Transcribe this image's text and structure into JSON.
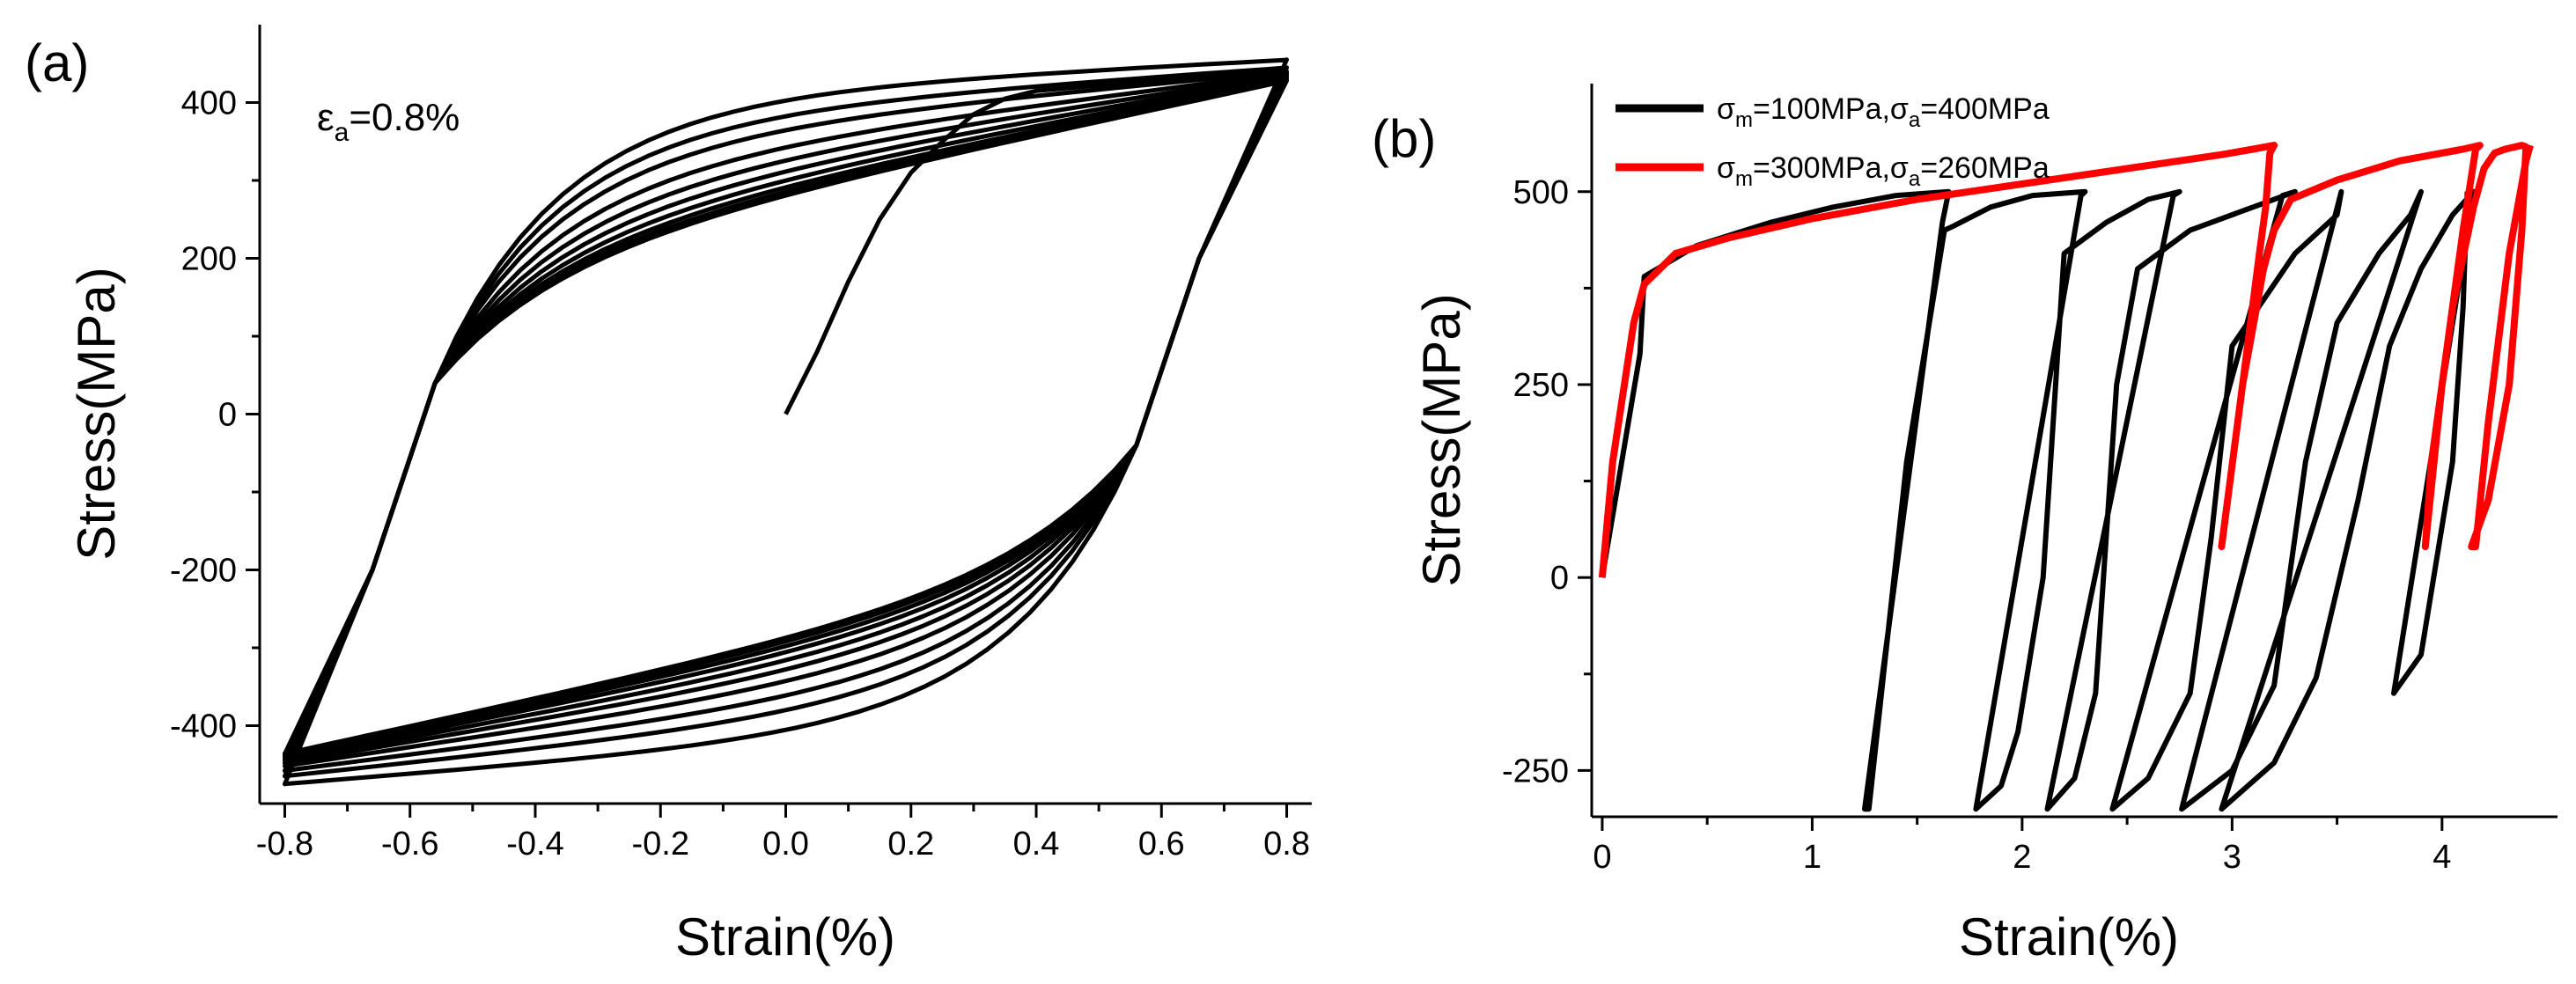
{
  "chart_data": [
    {
      "panel": "(a)",
      "type": "line",
      "xlabel": "Strain(%)",
      "ylabel": "Stress(MPa)",
      "xlim": [
        -0.84,
        0.84
      ],
      "ylim": [
        -500,
        500
      ],
      "xticks": [
        -0.8,
        -0.6,
        -0.4,
        -0.2,
        0.0,
        0.2,
        0.4,
        0.6,
        0.8
      ],
      "xtick_labels": [
        "-0.8",
        "-0.6",
        "-0.4",
        "-0.2",
        "0.0",
        "0.2",
        "0.4",
        "0.6",
        "0.8"
      ],
      "yticks": [
        -400,
        -200,
        0,
        200,
        400
      ],
      "ytick_labels": [
        "-400",
        "-200",
        "0",
        "200",
        "400"
      ],
      "annotation": {
        "main": "ε",
        "sub": "a",
        "rest": "=0.8%"
      },
      "grid": false,
      "line_color": "#000000",
      "initial_loading": {
        "x": [
          0.0,
          0.05,
          0.1,
          0.15,
          0.2,
          0.25,
          0.3,
          0.35,
          0.4,
          0.5,
          0.6,
          0.7,
          0.8
        ],
        "y": [
          0,
          80,
          170,
          250,
          310,
          350,
          385,
          405,
          415,
          422,
          428,
          434,
          440
        ]
      },
      "cycles": [
        {
          "upper_peak": 455,
          "lower_peak": -475,
          "upper_knee": 400,
          "lower_knee": -390
        },
        {
          "upper_peak": 445,
          "lower_peak": -465,
          "upper_knee": 370,
          "lower_knee": -350
        },
        {
          "upper_peak": 440,
          "lower_peak": -458,
          "upper_knee": 340,
          "lower_knee": -320
        },
        {
          "upper_peak": 438,
          "lower_peak": -452,
          "upper_knee": 300,
          "lower_knee": -290
        },
        {
          "upper_peak": 436,
          "lower_peak": -448,
          "upper_knee": 270,
          "lower_knee": -265
        },
        {
          "upper_peak": 434,
          "lower_peak": -445,
          "upper_knee": 245,
          "lower_knee": -245
        },
        {
          "upper_peak": 432,
          "lower_peak": -442,
          "upper_knee": 225,
          "lower_knee": -228
        },
        {
          "upper_peak": 430,
          "lower_peak": -440,
          "upper_knee": 210,
          "lower_knee": -215
        },
        {
          "upper_peak": 429,
          "lower_peak": -438,
          "upper_knee": 200,
          "lower_knee": -205
        },
        {
          "upper_peak": 428,
          "lower_peak": -436,
          "upper_knee": 192,
          "lower_knee": -198
        }
      ]
    },
    {
      "panel": "(b)",
      "type": "line",
      "xlabel": "Strain(%)",
      "ylabel": "Stress(MPa)",
      "xlim": [
        -0.05,
        4.55
      ],
      "ylim": [
        -310,
        640
      ],
      "xticks": [
        0,
        1,
        2,
        3,
        4
      ],
      "xtick_labels": [
        "0",
        "1",
        "2",
        "3",
        "4"
      ],
      "yticks": [
        -250,
        0,
        250,
        500
      ],
      "ytick_labels": [
        "-250",
        "0",
        "250",
        "500"
      ],
      "grid": false,
      "legend_position": "top-left",
      "series": [
        {
          "legend": {
            "s1": "σ",
            "sub1": "m",
            "mid": "=100MPa,σ",
            "sub2": "a",
            "end": "=400MPa"
          },
          "color": "#000000",
          "x": [
            0.0,
            0.18,
            0.2,
            0.45,
            0.8,
            1.1,
            1.4,
            1.65,
            1.62,
            1.25,
            1.27,
            1.45,
            1.63,
            1.67,
            1.85,
            2.05,
            2.3,
            2.28,
            1.78,
            1.9,
            1.98,
            2.1,
            2.2,
            2.4,
            2.6,
            2.75,
            2.72,
            2.12,
            2.25,
            2.35,
            2.45,
            2.55,
            2.8,
            3.1,
            3.3,
            3.24,
            2.43,
            2.6,
            2.8,
            2.9,
            3.0,
            3.3,
            3.5,
            3.52,
            2.76,
            3.0,
            3.2,
            3.35,
            3.5,
            3.7,
            3.85,
            3.9,
            2.95,
            3.2,
            3.4,
            3.6,
            3.75,
            3.9,
            4.05,
            4.15,
            3.77,
            3.9,
            4.05,
            4.1,
            4.12
          ],
          "y": [
            0,
            290,
            390,
            430,
            460,
            480,
            495,
            500,
            460,
            -300,
            -300,
            150,
            450,
            455,
            480,
            495,
            500,
            495,
            -300,
            -270,
            -200,
            0,
            420,
            460,
            490,
            500,
            495,
            -300,
            -260,
            -150,
            250,
            400,
            450,
            480,
            500,
            495,
            -300,
            -260,
            -150,
            50,
            300,
            420,
            470,
            500,
            -300,
            -250,
            -140,
            150,
            330,
            420,
            470,
            500,
            -300,
            -240,
            -130,
            100,
            300,
            400,
            470,
            500,
            -150,
            -100,
            150,
            350,
            500
          ]
        },
        {
          "legend": {
            "s1": "σ",
            "sub1": "m",
            "mid": "=300MPa,σ",
            "sub2": "a",
            "end": "=260MPa"
          },
          "color": "#ff0000",
          "x": [
            0.0,
            0.05,
            0.15,
            0.2,
            0.35,
            0.6,
            1.0,
            1.5,
            2.0,
            2.5,
            2.95,
            3.1,
            3.2,
            3.18,
            3.16,
            3.13,
            3.05,
            2.95,
            3.05,
            3.15,
            3.2,
            3.28,
            3.5,
            3.8,
            4.1,
            4.18,
            4.16,
            4.1,
            4.0,
            3.92,
            3.95,
            4.05,
            4.15,
            4.2,
            4.25,
            4.3,
            4.38,
            4.4,
            4.38,
            4.32,
            4.22,
            4.14,
            4.16,
            4.22,
            4.32,
            4.4,
            4.42
          ],
          "y": [
            0,
            150,
            330,
            380,
            420,
            440,
            465,
            490,
            510,
            530,
            548,
            555,
            560,
            550,
            480,
            420,
            250,
            40,
            250,
            400,
            450,
            490,
            515,
            540,
            555,
            560,
            555,
            450,
            250,
            40,
            150,
            350,
            480,
            530,
            550,
            555,
            560,
            558,
            450,
            250,
            100,
            40,
            40,
            200,
            420,
            540,
            560
          ]
        }
      ]
    }
  ]
}
